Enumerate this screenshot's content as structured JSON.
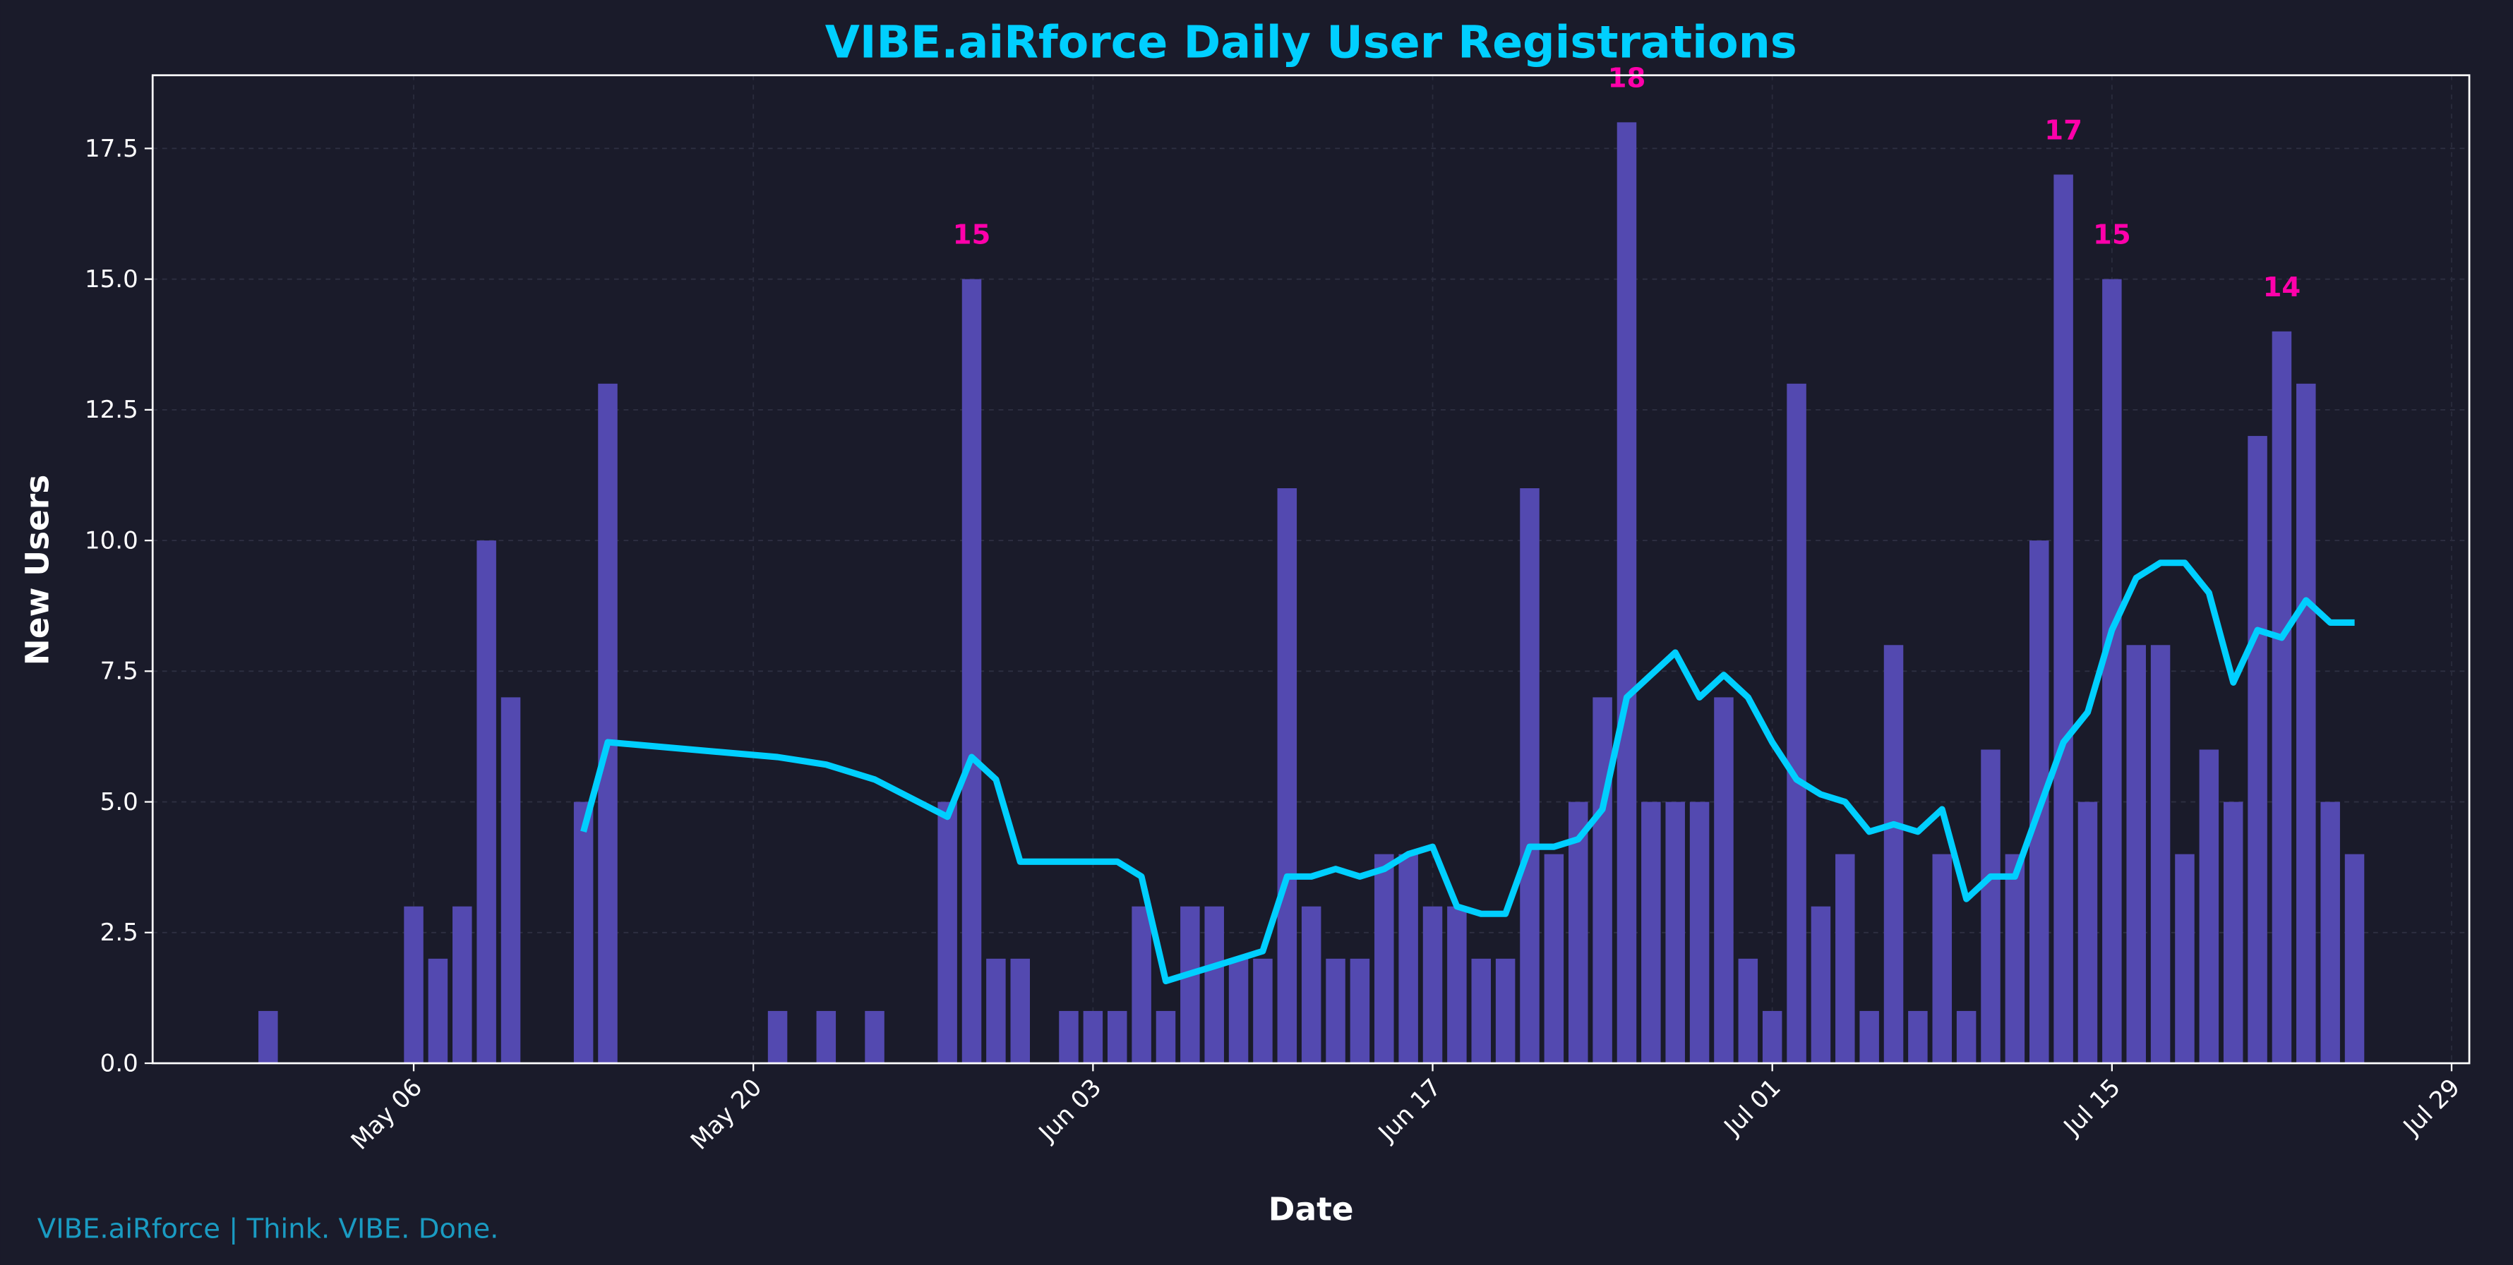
{
  "chart_data": {
    "type": "bar",
    "title": "VIBE.aiRforce Daily User Registrations",
    "xlabel": "Date",
    "ylabel": "New Users",
    "ylim": [
      0,
      18.9
    ],
    "xlim": [
      "Apr 25",
      "Jul 29"
    ],
    "yticks": [
      "0.0",
      "2.5",
      "5.0",
      "7.5",
      "10.0",
      "12.5",
      "15.0",
      "17.5"
    ],
    "xticks": [
      "May 06",
      "May 20",
      "Jun 03",
      "Jun 17",
      "Jul 01",
      "Jul 15",
      "Jul 29"
    ],
    "grid": true,
    "dates": [
      "Apr 30",
      "May 06",
      "May 07",
      "May 08",
      "May 09",
      "May 10",
      "May 13",
      "May 14",
      "May 21",
      "May 23",
      "May 25",
      "May 28",
      "May 29",
      "May 30",
      "May 31",
      "Jun 02",
      "Jun 03",
      "Jun 04",
      "Jun 05",
      "Jun 06",
      "Jun 07",
      "Jun 08",
      "Jun 09",
      "Jun 10",
      "Jun 11",
      "Jun 12",
      "Jun 13",
      "Jun 14",
      "Jun 15",
      "Jun 16",
      "Jun 17",
      "Jun 18",
      "Jun 19",
      "Jun 20",
      "Jun 21",
      "Jun 22",
      "Jun 23",
      "Jun 24",
      "Jun 25",
      "Jun 26",
      "Jun 27",
      "Jun 28",
      "Jun 29",
      "Jun 30",
      "Jul 01",
      "Jul 02",
      "Jul 03",
      "Jul 04",
      "Jul 05",
      "Jul 06",
      "Jul 07",
      "Jul 08",
      "Jul 09",
      "Jul 10",
      "Jul 11",
      "Jul 12",
      "Jul 13",
      "Jul 14",
      "Jul 15",
      "Jul 16",
      "Jul 17",
      "Jul 18",
      "Jul 19",
      "Jul 20",
      "Jul 21",
      "Jul 22",
      "Jul 23",
      "Jul 24",
      "Jul 25"
    ],
    "values": [
      1,
      3,
      2,
      3,
      10,
      7,
      5,
      13,
      1,
      1,
      1,
      5,
      15,
      2,
      2,
      1,
      1,
      1,
      3,
      1,
      3,
      3,
      2,
      2,
      11,
      3,
      2,
      2,
      4,
      4,
      3,
      3,
      2,
      2,
      11,
      4,
      5,
      7,
      18,
      5,
      5,
      5,
      7,
      2,
      1,
      13,
      3,
      4,
      1,
      8,
      1,
      4,
      1,
      6,
      4,
      10,
      17,
      5,
      15,
      8,
      8,
      4,
      6,
      5,
      12,
      14,
      13,
      5,
      4
    ],
    "rolling_average_window": 7,
    "annotations": [
      {
        "date": "May 29",
        "label": "15"
      },
      {
        "date": "Jun 25",
        "label": "18"
      },
      {
        "date": "Jul 13",
        "label": "17"
      },
      {
        "date": "Jul 15",
        "label": "15"
      },
      {
        "date": "Jul 22",
        "label": "14"
      }
    ],
    "colors": {
      "background": "#1a1b2a",
      "bars": "#5349b0",
      "rolling_line": "#00cfff",
      "annotation": "#ff00aa",
      "title": "#00cfff",
      "footer": "#1a9bc2"
    }
  },
  "footer": "VIBE.aiRforce | Think. VIBE. Done."
}
